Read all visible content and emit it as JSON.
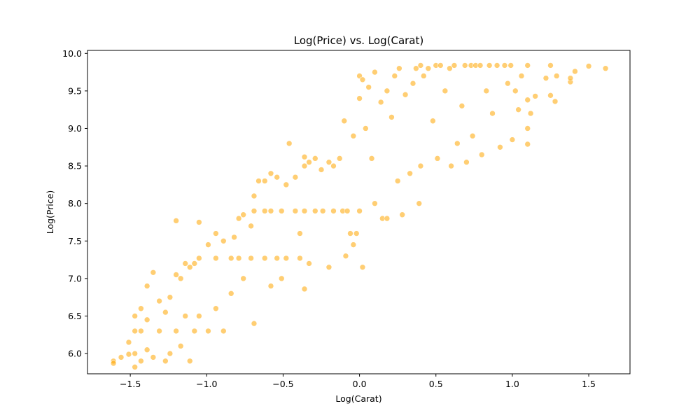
{
  "chart_data": {
    "type": "scatter",
    "title": "Log(Price) vs. Log(Carat)",
    "xlabel": "Log(Carat)",
    "ylabel": "Log(Price)",
    "xlim": [
      -1.78,
      1.77
    ],
    "ylim": [
      5.73,
      10.04
    ],
    "xticks": [
      -1.5,
      -1.0,
      -0.5,
      0.0,
      0.5,
      1.0,
      1.5
    ],
    "xtick_labels": [
      "−1.5",
      "−1.0",
      "−0.5",
      "0.0",
      "0.5",
      "1.0",
      "1.5"
    ],
    "yticks": [
      6.0,
      6.5,
      7.0,
      7.5,
      8.0,
      8.5,
      9.0,
      9.5,
      10.0
    ],
    "ytick_labels": [
      "6.0",
      "6.5",
      "7.0",
      "7.5",
      "8.0",
      "8.5",
      "9.0",
      "9.5",
      "10.0"
    ],
    "grid": false,
    "marker_color": "#FFA500",
    "marker_alpha": 0.55,
    "series": [
      {
        "values": [
          [
            -1.61,
            5.9
          ],
          [
            -1.61,
            5.87
          ],
          [
            -1.56,
            5.95
          ],
          [
            -1.51,
            5.99
          ],
          [
            -1.51,
            6.15
          ],
          [
            -1.47,
            5.82
          ],
          [
            -1.47,
            6.0
          ],
          [
            -1.47,
            6.3
          ],
          [
            -1.47,
            6.5
          ],
          [
            -1.43,
            5.9
          ],
          [
            -1.43,
            6.3
          ],
          [
            -1.43,
            6.6
          ],
          [
            -1.39,
            6.05
          ],
          [
            -1.39,
            6.45
          ],
          [
            -1.35,
            7.08
          ],
          [
            -1.39,
            6.9
          ],
          [
            -1.35,
            5.95
          ],
          [
            -1.31,
            6.3
          ],
          [
            -1.31,
            6.7
          ],
          [
            -1.27,
            5.9
          ],
          [
            -1.27,
            6.55
          ],
          [
            -1.24,
            6.0
          ],
          [
            -1.24,
            6.75
          ],
          [
            -1.2,
            6.3
          ],
          [
            -1.2,
            7.05
          ],
          [
            -1.2,
            7.77
          ],
          [
            -1.17,
            6.1
          ],
          [
            -1.17,
            7.0
          ],
          [
            -1.14,
            6.5
          ],
          [
            -1.14,
            7.2
          ],
          [
            -1.11,
            5.9
          ],
          [
            -1.11,
            7.15
          ],
          [
            -1.08,
            6.3
          ],
          [
            -1.08,
            7.2
          ],
          [
            -1.05,
            6.5
          ],
          [
            -1.05,
            7.27
          ],
          [
            -1.05,
            7.75
          ],
          [
            -0.99,
            6.3
          ],
          [
            -0.99,
            7.45
          ],
          [
            -0.94,
            6.6
          ],
          [
            -0.94,
            7.27
          ],
          [
            -0.94,
            7.6
          ],
          [
            -0.89,
            6.3
          ],
          [
            -0.89,
            7.5
          ],
          [
            -0.84,
            6.8
          ],
          [
            -0.84,
            7.27
          ],
          [
            -0.82,
            7.55
          ],
          [
            -0.79,
            7.27
          ],
          [
            -0.79,
            7.8
          ],
          [
            -0.76,
            7.0
          ],
          [
            -0.76,
            7.85
          ],
          [
            -0.71,
            7.27
          ],
          [
            -0.71,
            7.7
          ],
          [
            -0.69,
            6.4
          ],
          [
            -0.69,
            7.9
          ],
          [
            -0.69,
            8.1
          ],
          [
            -0.66,
            8.3
          ],
          [
            -0.62,
            7.27
          ],
          [
            -0.62,
            7.9
          ],
          [
            -0.62,
            8.3
          ],
          [
            -0.58,
            6.9
          ],
          [
            -0.58,
            7.9
          ],
          [
            -0.58,
            8.4
          ],
          [
            -0.54,
            7.27
          ],
          [
            -0.54,
            8.35
          ],
          [
            -0.51,
            7.0
          ],
          [
            -0.51,
            7.9
          ],
          [
            -0.48,
            8.25
          ],
          [
            -0.48,
            7.27
          ],
          [
            -0.46,
            8.8
          ],
          [
            -0.42,
            7.9
          ],
          [
            -0.42,
            8.35
          ],
          [
            -0.39,
            7.27
          ],
          [
            -0.39,
            7.6
          ],
          [
            -0.36,
            8.5
          ],
          [
            -0.36,
            8.62
          ],
          [
            -0.36,
            7.9
          ],
          [
            -0.36,
            6.86
          ],
          [
            -0.33,
            8.55
          ],
          [
            -0.33,
            7.2
          ],
          [
            -0.29,
            7.9
          ],
          [
            -0.29,
            8.6
          ],
          [
            -0.25,
            8.45
          ],
          [
            -0.24,
            7.9
          ],
          [
            -0.2,
            8.55
          ],
          [
            -0.2,
            7.15
          ],
          [
            -0.17,
            8.5
          ],
          [
            -0.17,
            7.9
          ],
          [
            -0.13,
            8.6
          ],
          [
            -0.11,
            7.9
          ],
          [
            -0.1,
            9.1
          ],
          [
            -0.09,
            7.3
          ],
          [
            -0.08,
            7.9
          ],
          [
            -0.06,
            7.6
          ],
          [
            -0.04,
            8.9
          ],
          [
            -0.04,
            7.45
          ],
          [
            -0.02,
            7.6
          ],
          [
            0.0,
            9.7
          ],
          [
            0.0,
            9.4
          ],
          [
            0.0,
            7.9
          ],
          [
            0.02,
            9.65
          ],
          [
            0.02,
            7.15
          ],
          [
            0.04,
            9.0
          ],
          [
            0.06,
            9.55
          ],
          [
            0.08,
            8.6
          ],
          [
            0.1,
            9.75
          ],
          [
            0.1,
            8.0
          ],
          [
            0.14,
            9.35
          ],
          [
            0.15,
            7.8
          ],
          [
            0.18,
            9.5
          ],
          [
            0.18,
            7.8
          ],
          [
            0.21,
            9.15
          ],
          [
            0.23,
            9.7
          ],
          [
            0.25,
            8.3
          ],
          [
            0.26,
            9.8
          ],
          [
            0.28,
            7.85
          ],
          [
            0.3,
            9.45
          ],
          [
            0.33,
            8.4
          ],
          [
            0.35,
            9.6
          ],
          [
            0.37,
            9.8
          ],
          [
            0.39,
            8.0
          ],
          [
            0.4,
            9.84
          ],
          [
            0.4,
            8.5
          ],
          [
            0.42,
            9.7
          ],
          [
            0.45,
            9.8
          ],
          [
            0.48,
            9.1
          ],
          [
            0.5,
            9.84
          ],
          [
            0.51,
            8.6
          ],
          [
            0.53,
            9.84
          ],
          [
            0.56,
            9.5
          ],
          [
            0.59,
            9.8
          ],
          [
            0.6,
            8.5
          ],
          [
            0.62,
            9.84
          ],
          [
            0.64,
            8.8
          ],
          [
            0.67,
            9.3
          ],
          [
            0.69,
            9.84
          ],
          [
            0.7,
            8.55
          ],
          [
            0.73,
            9.84
          ],
          [
            0.74,
            8.9
          ],
          [
            0.76,
            9.84
          ],
          [
            0.79,
            9.84
          ],
          [
            0.8,
            8.65
          ],
          [
            0.83,
            9.5
          ],
          [
            0.85,
            9.84
          ],
          [
            0.87,
            9.2
          ],
          [
            0.9,
            9.84
          ],
          [
            0.92,
            8.75
          ],
          [
            0.95,
            9.84
          ],
          [
            0.97,
            9.6
          ],
          [
            0.99,
            9.84
          ],
          [
            1.0,
            8.85
          ],
          [
            1.02,
            9.5
          ],
          [
            1.04,
            9.25
          ],
          [
            1.06,
            9.7
          ],
          [
            1.1,
            9.84
          ],
          [
            1.1,
            9.38
          ],
          [
            1.1,
            9.0
          ],
          [
            1.1,
            8.79
          ],
          [
            1.12,
            9.2
          ],
          [
            1.15,
            9.43
          ],
          [
            1.22,
            9.67
          ],
          [
            1.25,
            9.84
          ],
          [
            1.25,
            9.44
          ],
          [
            1.28,
            9.36
          ],
          [
            1.29,
            9.7
          ],
          [
            1.38,
            9.62
          ],
          [
            1.38,
            9.67
          ],
          [
            1.41,
            9.76
          ],
          [
            1.5,
            9.83
          ],
          [
            1.61,
            9.8
          ]
        ]
      }
    ]
  }
}
